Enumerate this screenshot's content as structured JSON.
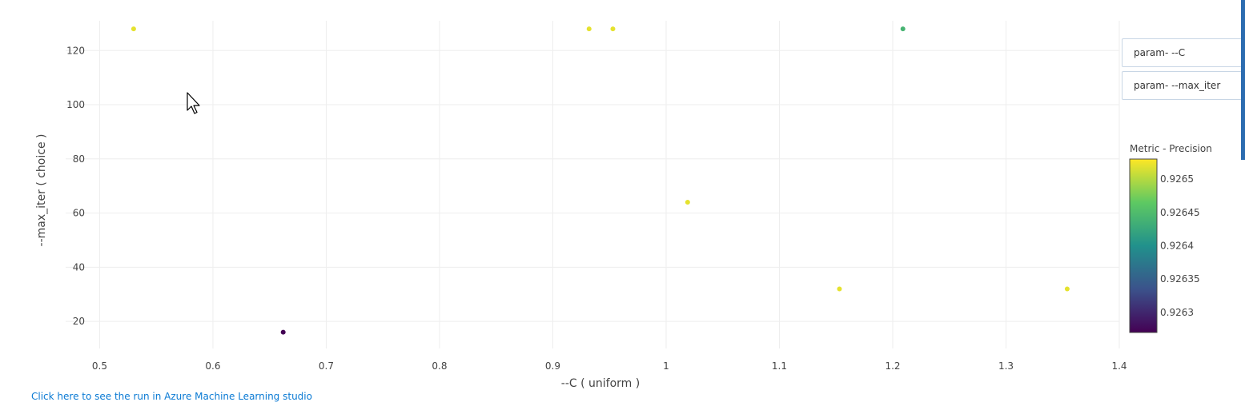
{
  "controls": {
    "x_param": "param- --C",
    "y_param": "param- --max_iter"
  },
  "run_link": "Click here to see the run in Azure Machine Learning studio",
  "colors": {
    "link": "#0a7ad4",
    "grid": "#eeeeee",
    "viridis": [
      "#440154",
      "#3b528b",
      "#21918c",
      "#5ec962",
      "#fde725"
    ]
  },
  "chart_data": {
    "type": "scatter",
    "xlabel": "--C ( uniform )",
    "ylabel": "--max_iter ( choice )",
    "xlim": [
      0.47,
      1.4
    ],
    "ylim": [
      10,
      131
    ],
    "x_ticks": [
      0.5,
      0.6,
      0.7,
      0.8,
      0.9,
      1,
      1.1,
      1.2,
      1.3,
      1.4
    ],
    "x_tick_labels": [
      "0.5",
      "0.6",
      "0.7",
      "0.8",
      "0.9",
      "1",
      "1.1",
      "1.2",
      "1.3",
      "1.4"
    ],
    "y_ticks": [
      20,
      40,
      60,
      80,
      100,
      120
    ],
    "y_tick_labels": [
      "20",
      "40",
      "60",
      "80",
      "100",
      "120"
    ],
    "grid": true,
    "points": [
      {
        "x": 0.53,
        "y": 128,
        "precision": 0.92652
      },
      {
        "x": 0.662,
        "y": 16,
        "precision": 0.92627
      },
      {
        "x": 0.932,
        "y": 128,
        "precision": 0.92652
      },
      {
        "x": 0.953,
        "y": 128,
        "precision": 0.92652
      },
      {
        "x": 1.019,
        "y": 64,
        "precision": 0.92652
      },
      {
        "x": 1.153,
        "y": 32,
        "precision": 0.92652
      },
      {
        "x": 1.209,
        "y": 128,
        "precision": 0.92644
      },
      {
        "x": 1.354,
        "y": 32,
        "precision": 0.92652
      }
    ],
    "colorbar": {
      "title": "Metric - Precision",
      "range": [
        0.92627,
        0.92653
      ],
      "ticks": [
        0.9263,
        0.92635,
        0.9264,
        0.92645,
        0.9265
      ],
      "tick_labels": [
        "0.9263",
        "0.92635",
        "0.9264",
        "0.92645",
        "0.9265"
      ]
    }
  }
}
